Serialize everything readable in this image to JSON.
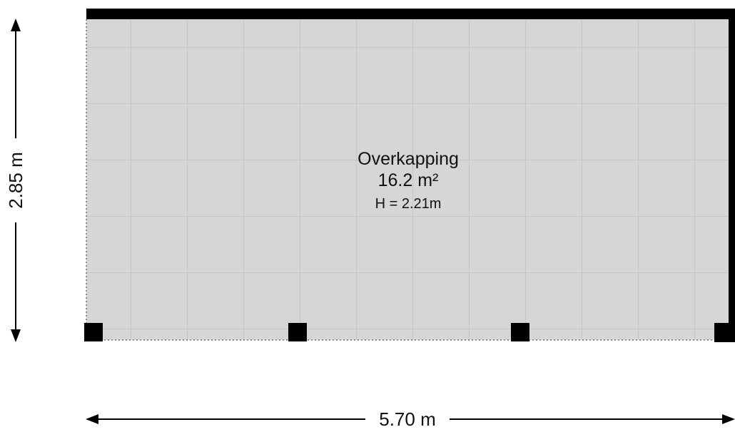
{
  "room": {
    "name": "Overkapping",
    "area": "16.2 m²",
    "height": "H = 2.21m"
  },
  "dimensions": {
    "width": "5.70 m",
    "height": "2.85 m"
  },
  "colors": {
    "floor": "#d6d6d6",
    "tile_line": "#c8c8c8",
    "wall": "#000000",
    "dimension_line": "#000000"
  }
}
